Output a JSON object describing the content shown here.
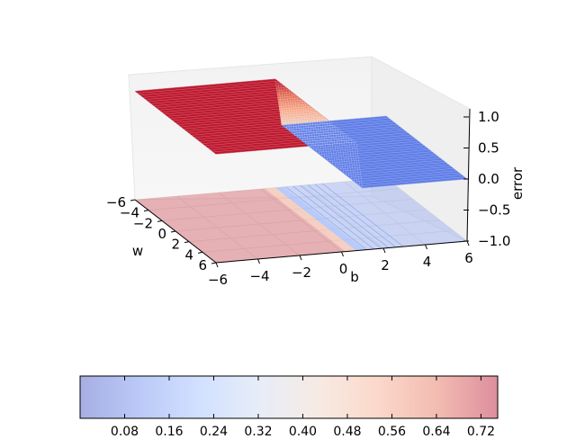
{
  "chart_data": {
    "type": "surface3d",
    "title": "",
    "xlabel": "w",
    "ylabel": "b",
    "zlabel": "error",
    "x_ticks": [
      "−6",
      "−4",
      "−2",
      "0",
      "2",
      "4",
      "6"
    ],
    "y_ticks": [
      "−6",
      "−4",
      "−2",
      "0",
      "2",
      "4",
      "6"
    ],
    "z_ticks": [
      "−1.0",
      "−0.5",
      "0.0",
      "0.5",
      "1.0"
    ],
    "xlim": [
      -6,
      6
    ],
    "ylim": [
      -6,
      6
    ],
    "zlim": [
      -1.0,
      1.2
    ],
    "colormap": "coolwarm",
    "surface": {
      "high_level": 0.75,
      "low_level": 0.0,
      "description": "sigmoid step error surface: high plateau for b below the transition, low plateau beyond"
    },
    "contour_offset": -1.0,
    "grid": true,
    "colorbar": {
      "ticks": [
        "0.08",
        "0.16",
        "0.24",
        "0.32",
        "0.40",
        "0.48",
        "0.56",
        "0.64",
        "0.72"
      ],
      "min": 0.0,
      "max": 0.75,
      "colors": [
        "#3b4cc0",
        "#6788ee",
        "#9abbff",
        "#c9d7f0",
        "#edd1c2",
        "#f7a889",
        "#e26952",
        "#b40426"
      ]
    }
  }
}
